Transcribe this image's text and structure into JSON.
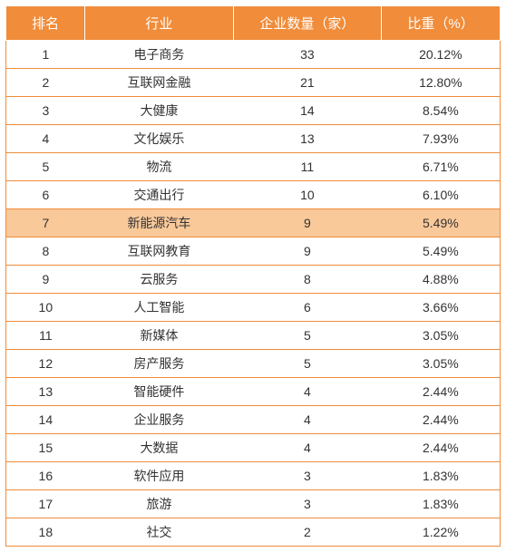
{
  "table": {
    "header_bg": "#f08c3a",
    "header_fg": "#ffffff",
    "border_color": "#f08c3a",
    "highlight_bg": "#f9c99a",
    "row_bg": "#ffffff",
    "highlight_row_index": 6,
    "columns": [
      "排名",
      "行业",
      "企业数量（家）",
      "比重（%）"
    ],
    "rows": [
      {
        "rank": "1",
        "industry": "电子商务",
        "count": "33",
        "pct": "20.12%"
      },
      {
        "rank": "2",
        "industry": "互联网金融",
        "count": "21",
        "pct": "12.80%"
      },
      {
        "rank": "3",
        "industry": "大健康",
        "count": "14",
        "pct": "8.54%"
      },
      {
        "rank": "4",
        "industry": "文化娱乐",
        "count": "13",
        "pct": "7.93%"
      },
      {
        "rank": "5",
        "industry": "物流",
        "count": "11",
        "pct": "6.71%"
      },
      {
        "rank": "6",
        "industry": "交通出行",
        "count": "10",
        "pct": "6.10%"
      },
      {
        "rank": "7",
        "industry": "新能源汽车",
        "count": "9",
        "pct": "5.49%"
      },
      {
        "rank": "8",
        "industry": "互联网教育",
        "count": "9",
        "pct": "5.49%"
      },
      {
        "rank": "9",
        "industry": "云服务",
        "count": "8",
        "pct": "4.88%"
      },
      {
        "rank": "10",
        "industry": "人工智能",
        "count": "6",
        "pct": "3.66%"
      },
      {
        "rank": "11",
        "industry": "新媒体",
        "count": "5",
        "pct": "3.05%"
      },
      {
        "rank": "12",
        "industry": "房产服务",
        "count": "5",
        "pct": "3.05%"
      },
      {
        "rank": "13",
        "industry": "智能硬件",
        "count": "4",
        "pct": "2.44%"
      },
      {
        "rank": "14",
        "industry": "企业服务",
        "count": "4",
        "pct": "2.44%"
      },
      {
        "rank": "15",
        "industry": "大数据",
        "count": "4",
        "pct": "2.44%"
      },
      {
        "rank": "16",
        "industry": "软件应用",
        "count": "3",
        "pct": "1.83%"
      },
      {
        "rank": "17",
        "industry": "旅游",
        "count": "3",
        "pct": "1.83%"
      },
      {
        "rank": "18",
        "industry": "社交",
        "count": "2",
        "pct": "1.22%"
      }
    ]
  }
}
